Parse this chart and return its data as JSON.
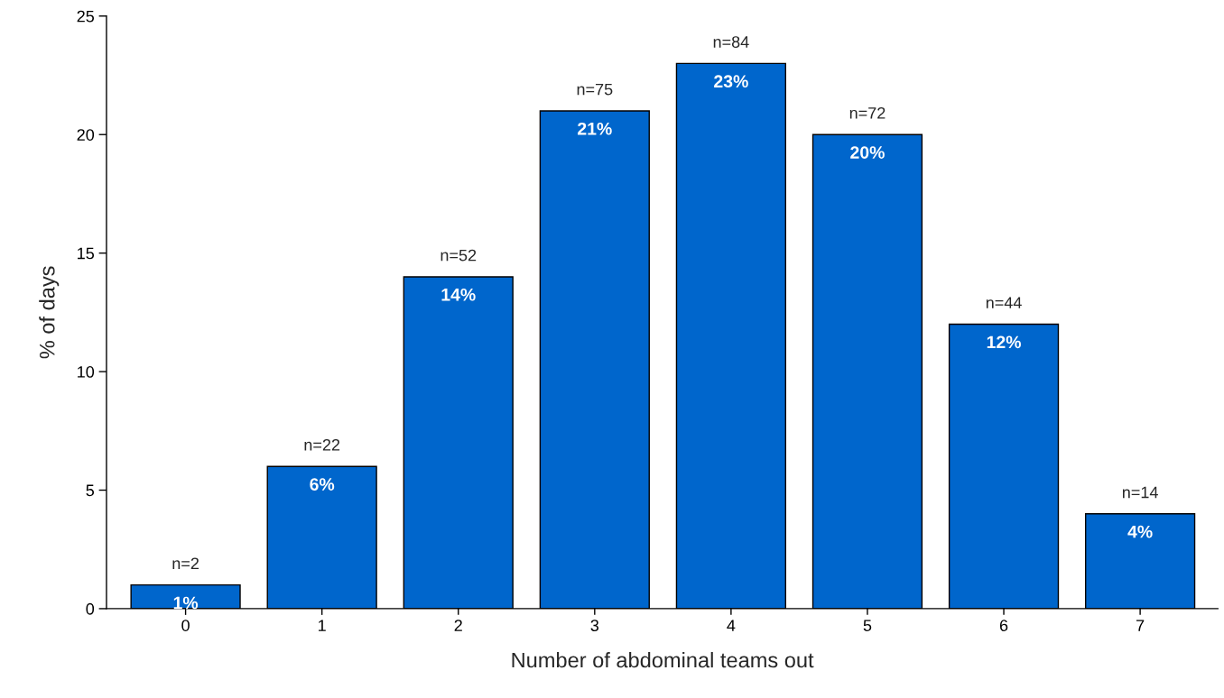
{
  "chart_data": {
    "type": "bar",
    "xlabel": "Number of abdominal teams out",
    "ylabel": "% of days",
    "categories": [
      "0",
      "1",
      "2",
      "3",
      "4",
      "5",
      "6",
      "7"
    ],
    "values": [
      1,
      6,
      14,
      21,
      23,
      20,
      12,
      4
    ],
    "value_labels": [
      "1%",
      "6%",
      "14%",
      "21%",
      "23%",
      "20%",
      "12%",
      "4%"
    ],
    "color": "#0066cc",
    "ylim": [
      0,
      25
    ],
    "yticks": [
      0,
      5,
      10,
      15,
      20,
      25
    ],
    "grid": false,
    "legend": false,
    "annotations": [
      {
        "text": "n=2",
        "x": "0",
        "y": 1
      },
      {
        "text": "n=22",
        "x": "1",
        "y": 6
      },
      {
        "text": "n=52",
        "x": "2",
        "y": 14
      },
      {
        "text": "n=75",
        "x": "3",
        "y": 21
      },
      {
        "text": "n=84",
        "x": "4",
        "y": 23
      },
      {
        "text": "n=72",
        "x": "5",
        "y": 20
      },
      {
        "text": "n=44",
        "x": "6",
        "y": 12
      },
      {
        "text": "n=14",
        "x": "7",
        "y": 4
      }
    ]
  }
}
